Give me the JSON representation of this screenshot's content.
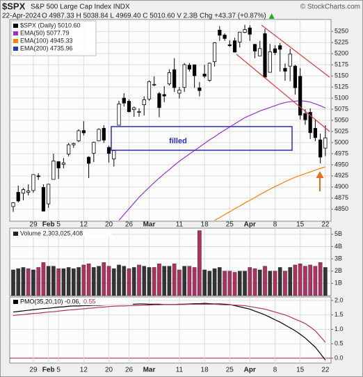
{
  "header": {
    "title": "$SPX",
    "subtitle": "S&P 500 Large Cap Index INDX",
    "watermark": "© StockCharts.com",
    "date": "22-Apr-2024",
    "quote": "O 4987.33 H 5038.84 L 4969.40 C 5010.60 V 2.3B Chg +43.37 (+0.87%)"
  },
  "chart_data": [
    {
      "type": "candlestick",
      "name": "$SPX (Daily) 5010.60",
      "color": "#000000",
      "annotation": "filled",
      "categories": [
        null,
        null,
        null,
        null,
        "29",
        null,
        null,
        "Feb",
        null,
        "5",
        null,
        null,
        null,
        null,
        "12",
        null,
        null,
        null,
        null,
        "20",
        null,
        null,
        null,
        "26",
        null,
        null,
        null,
        "Mar",
        null,
        null,
        null,
        null,
        null,
        "11",
        null,
        null,
        null,
        null,
        "18",
        null,
        null,
        null,
        null,
        "25",
        null,
        null,
        null,
        "Apr",
        null,
        null,
        null,
        null,
        "8",
        null,
        null,
        null,
        null,
        "15",
        null,
        null,
        null,
        null,
        "22"
      ],
      "open": [
        4856,
        4888,
        4886,
        4888,
        4892,
        4925,
        4899,
        4862,
        4917,
        4957,
        4951,
        4974,
        4995,
        5004,
        5027,
        4967,
        4976,
        5004,
        5032,
        4989,
        4963,
        5039,
        5100,
        5093,
        5074,
        5068,
        5085,
        5098,
        5130,
        5110,
        5108,
        5132,
        5164,
        5111,
        5124,
        5174,
        5175,
        5123,
        5154,
        5140,
        5182,
        5253,
        5242,
        5220,
        5229,
        5226,
        5248,
        5258,
        5221,
        5195,
        5245,
        5158,
        5211,
        5218,
        5167,
        5172,
        5172,
        5149,
        5065,
        5068,
        5032,
        5006,
        4987.33
      ],
      "high": [
        4866,
        4903,
        4898,
        4906,
        4929,
        4931,
        4906,
        4907,
        4975,
        4958,
        4965,
        4999,
        5000,
        5030,
        5048,
        4969,
        5002,
        5032,
        5039,
        4993,
        4983,
        5094,
        5111,
        5097,
        5081,
        5077,
        5104,
        5140,
        5149,
        5114,
        5127,
        5165,
        5190,
        5125,
        5179,
        5179,
        5176,
        5136,
        5175,
        5180,
        5226,
        5262,
        5246,
        5230,
        5236,
        5249,
        5265,
        5264,
        5222,
        5229,
        5256,
        5222,
        5219,
        5224,
        5178,
        5211,
        5175,
        5168,
        5075,
        5077,
        5052,
        5020,
        5038.84
      ],
      "low": [
        4844,
        4865,
        4870,
        4881,
        4887,
        4916,
        4845,
        4853,
        4917,
        4918,
        4942,
        4969,
        4988,
        5001,
        5016,
        4920,
        4956,
        5004,
        4999,
        4955,
        4946,
        5039,
        5081,
        5068,
        5058,
        5058,
        5061,
        5094,
        5127,
        5057,
        5091,
        5128,
        5114,
        5099,
        5114,
        5160,
        5123,
        5104,
        5145,
        5137,
        5171,
        5229,
        5229,
        5215,
        5203,
        5214,
        5246,
        5229,
        5190,
        5195,
        5146,
        5158,
        5197,
        5160,
        5139,
        5138,
        5108,
        5052,
        5040,
        5008,
        5003,
        4953,
        4969.4
      ],
      "close": [
        4864.6,
        4868.55,
        4894.16,
        4890.97,
        4927.93,
        4924.97,
        4845.65,
        4906.19,
        4958.61,
        4942.81,
        4954.23,
        4995.06,
        4997.91,
        5026.61,
        5021.84,
        4953.17,
        5000.62,
        5029.73,
        5005.57,
        4975.51,
        4981.8,
        5087.03,
        5088.8,
        5069.53,
        5078.18,
        5069.76,
        5096.27,
        5137.08,
        5130.95,
        5078.65,
        5104.76,
        5157.36,
        5123.69,
        5117.94,
        5175.27,
        5165.31,
        5150.48,
        5117.09,
        5149.42,
        5178.51,
        5224.62,
        5241.53,
        5234.18,
        5218.19,
        5203.58,
        5248.49,
        5254.35,
        5243.77,
        5205.81,
        5211.49,
        5147.21,
        5204.34,
        5202.39,
        5209.91,
        5160.64,
        5199.06,
        5123.41,
        5061.82,
        5051.41,
        5022.21,
        5011.12,
        4967.23,
        5010.6
      ],
      "series": [
        {
          "name": "EMA(50) 5077.79",
          "color": "#9933cc",
          "values": [
            null,
            null,
            null,
            null,
            null,
            null,
            null,
            null,
            null,
            null,
            null,
            null,
            null,
            null,
            null,
            null,
            null,
            null,
            null,
            null,
            null,
            4825,
            4838,
            4851,
            4864,
            4877,
            4888,
            4899,
            4910,
            4920,
            4930,
            4939,
            4949,
            4958,
            4966,
            4974,
            4982,
            4990,
            4998,
            5006,
            5013,
            5021,
            5028,
            5035,
            5042,
            5049,
            5056,
            5061,
            5066,
            5071,
            5075,
            5079,
            5083,
            5087,
            5090,
            5092,
            5093,
            5094,
            5093,
            5091,
            5087,
            5083,
            5077.79
          ]
        },
        {
          "name": "EMA(100) 4945.33",
          "color": "#ff7f00",
          "values": [
            null,
            null,
            null,
            null,
            null,
            null,
            null,
            null,
            null,
            null,
            null,
            null,
            null,
            null,
            null,
            null,
            null,
            null,
            null,
            null,
            null,
            null,
            null,
            null,
            null,
            null,
            null,
            null,
            null,
            null,
            null,
            null,
            null,
            null,
            null,
            null,
            null,
            null,
            null,
            null,
            4825,
            4831,
            4838,
            4844,
            4851,
            4857,
            4864,
            4870,
            4876,
            4883,
            4889,
            4895,
            4901,
            4906,
            4912,
            4917,
            4922,
            4926,
            4930,
            4934,
            4938,
            4942,
            4945.33
          ]
        },
        {
          "name": "EMA(200) 4735.96",
          "color": "#1f3fbf",
          "values": [
            null,
            null,
            null,
            null,
            null,
            null,
            null,
            null,
            null,
            null,
            null,
            null,
            null,
            null,
            null,
            null,
            null,
            null,
            null,
            null,
            null,
            null,
            null,
            null,
            null,
            null,
            null,
            null,
            null,
            null,
            null,
            null,
            null,
            null,
            null,
            null,
            null,
            null,
            null,
            null,
            null,
            null,
            null,
            null,
            null,
            null,
            null,
            null,
            null,
            null,
            null,
            null,
            null,
            null,
            null,
            null,
            null,
            null,
            null,
            null,
            null,
            null,
            null
          ]
        }
      ],
      "ylim": [
        4823,
        5277
      ],
      "yticks": [
        4850,
        4875,
        4900,
        4925,
        4950,
        4975,
        5000,
        5025,
        5050,
        5075,
        5100,
        5125,
        5150,
        5175,
        5200,
        5225,
        5250
      ],
      "grid": true
    },
    {
      "type": "bar",
      "title": "Volume 2,303,025,408",
      "colors": {
        "up": "#333333",
        "down": "#b03060"
      },
      "values": [
        2.1,
        2.2,
        2.3,
        2.2,
        2.1,
        2.3,
        2.7,
        2.4,
        2.4,
        2.2,
        2.2,
        2.3,
        2.2,
        2.3,
        2.5,
        2.6,
        2.3,
        2.4,
        2.7,
        2.4,
        2.2,
        2.5,
        2.4,
        2.2,
        2.3,
        2.5,
        2.4,
        2.3,
        2.3,
        2.6,
        2.4,
        2.4,
        2.6,
        2.1,
        2.4,
        2.4,
        2.3,
        5.3,
        2.1,
        2.0,
        2.2,
        2.3,
        2.0,
        2.0,
        1.9,
        2.0,
        2.0,
        2.3,
        2.2,
        2.1,
        2.4,
        2.0,
        2.0,
        2.3,
        2.0,
        2.3,
        2.5,
        2.6,
        2.4,
        2.5,
        2.4,
        2.7,
        2.3
      ],
      "ylim": [
        0,
        5.5
      ],
      "yticks": [
        {
          "value": 1,
          "label": "1B"
        },
        {
          "value": 2,
          "label": "2B"
        },
        {
          "value": 3,
          "label": "3B"
        },
        {
          "value": 4,
          "label": "4B"
        },
        {
          "value": 5,
          "label": "5B"
        }
      ],
      "grid": true
    },
    {
      "type": "line",
      "zero_line_color": "#b03060",
      "categories": [
        null,
        null,
        null,
        null,
        "29",
        null,
        null,
        "Feb",
        null,
        "5",
        null,
        null,
        null,
        null,
        "12",
        null,
        null,
        null,
        null,
        "20",
        null,
        null,
        null,
        "26",
        null,
        null,
        null,
        "Mar",
        null,
        null,
        null,
        null,
        null,
        "11",
        null,
        null,
        null,
        null,
        "18",
        null,
        null,
        null,
        null,
        "25",
        null,
        null,
        null,
        "Apr",
        null,
        null,
        null,
        null,
        "8",
        null,
        null,
        null,
        null,
        "15",
        null,
        null,
        null,
        null,
        "22"
      ],
      "series": [
        {
          "name": "PMO(35,20,10) -0.06,",
          "color": "#000000",
          "values": [
            1.6,
            1.62,
            1.64,
            1.66,
            1.68,
            1.7,
            1.72,
            1.73,
            1.75,
            1.77,
            1.78,
            1.8,
            1.81,
            1.81,
            1.82,
            1.82,
            1.83,
            1.83,
            1.84,
            1.85,
            1.85,
            1.86,
            1.86,
            1.87,
            1.87,
            1.88,
            1.88,
            1.87,
            1.87,
            1.87,
            1.86,
            1.86,
            1.86,
            1.87,
            1.87,
            1.88,
            1.89,
            1.89,
            1.9,
            1.89,
            1.88,
            1.88,
            1.87,
            1.86,
            1.82,
            1.78,
            1.74,
            1.7,
            1.63,
            1.57,
            1.5,
            1.42,
            1.33,
            1.25,
            1.15,
            1.05,
            0.95,
            0.83,
            0.7,
            0.54,
            0.38,
            0.16,
            -0.06
          ]
        },
        {
          "name": "0.55",
          "color": "#b03060",
          "values": [
            1.48,
            1.5,
            1.51,
            1.53,
            1.55,
            1.56,
            1.58,
            1.6,
            1.61,
            1.63,
            1.65,
            1.67,
            1.68,
            1.7,
            1.71,
            1.73,
            1.74,
            1.76,
            1.77,
            1.79,
            1.8,
            1.81,
            1.81,
            1.82,
            1.82,
            1.83,
            1.84,
            1.84,
            1.85,
            1.85,
            1.86,
            1.86,
            1.86,
            1.86,
            1.86,
            1.87,
            1.87,
            1.87,
            1.87,
            1.87,
            1.87,
            1.86,
            1.85,
            1.85,
            1.84,
            1.83,
            1.82,
            1.79,
            1.76,
            1.73,
            1.7,
            1.65,
            1.6,
            1.55,
            1.5,
            1.43,
            1.35,
            1.28,
            1.2,
            1.08,
            0.95,
            0.75,
            0.55
          ]
        }
      ],
      "ylim": [
        -0.17,
        2.12
      ],
      "yticks": [
        {
          "value": 0,
          "label": "0.0"
        },
        {
          "value": 0.5,
          "label": "0.5"
        },
        {
          "value": 1,
          "label": "1.0"
        },
        {
          "value": 1.5,
          "label": "1.5"
        },
        {
          "value": 2,
          "label": "2.0"
        }
      ],
      "grid": true
    }
  ]
}
